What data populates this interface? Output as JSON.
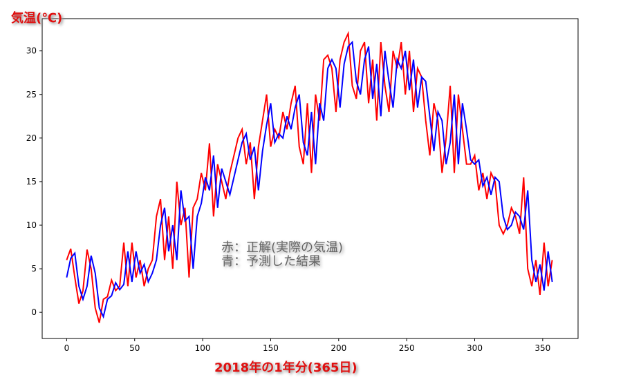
{
  "chart_data": {
    "type": "line",
    "title": "",
    "ylabel": "気温(℃)",
    "xlabel": "2018年の1年分(365日)",
    "xlim": [
      -18,
      376
    ],
    "ylim": [
      -3,
      33.7
    ],
    "xticks": [
      0,
      50,
      100,
      150,
      200,
      250,
      300,
      350
    ],
    "yticks": [
      0,
      5,
      10,
      15,
      20,
      25,
      30
    ],
    "grid": false,
    "annotation": [
      "赤：正解(実際の気温)",
      "青：予測した結果"
    ],
    "x_step": 3,
    "series": [
      {
        "color": "#ff0000",
        "values": [
          6,
          7.3,
          4,
          1,
          2.5,
          7.2,
          5,
          0.5,
          -1.2,
          1.5,
          1.8,
          3.7,
          2.5,
          3,
          8,
          3,
          8,
          4,
          6,
          3,
          5,
          6,
          11,
          13,
          6,
          11,
          5,
          15,
          10,
          12,
          4,
          12,
          13,
          16,
          14,
          19.4,
          11,
          17,
          15,
          13,
          16,
          18,
          20,
          21,
          17,
          19.5,
          13,
          19,
          22,
          25,
          19,
          21,
          20,
          23,
          21,
          24,
          26,
          19,
          17,
          24,
          16,
          25,
          22,
          29,
          29.5,
          28,
          23,
          29,
          31,
          32,
          26,
          24.5,
          30,
          31,
          24,
          29,
          22,
          31,
          26,
          23,
          30,
          28,
          31,
          25,
          30,
          23,
          28,
          27,
          22,
          18,
          24,
          22,
          16,
          20,
          26,
          16,
          25,
          21,
          17,
          17,
          18,
          14,
          16,
          13,
          16,
          15,
          10,
          9,
          10,
          12,
          11,
          9,
          15.5,
          5,
          3,
          6,
          2,
          8,
          3,
          6
        ]
      },
      {
        "color": "#0000ff",
        "values": [
          4,
          6.2,
          6.8,
          3,
          1.5,
          3,
          6.5,
          4.5,
          0.5,
          -0.5,
          1.5,
          1.9,
          3.4,
          2.6,
          3.2,
          7,
          3.5,
          7,
          4.5,
          5.5,
          3.5,
          4.5,
          6,
          10,
          12,
          7,
          10,
          6,
          14,
          10.5,
          11,
          5,
          11,
          12.5,
          15.5,
          14,
          18,
          12,
          16.5,
          15,
          13.5,
          15.5,
          17.5,
          19.5,
          20.5,
          17.5,
          19,
          14,
          18.5,
          21.5,
          24,
          19.5,
          20.5,
          20,
          22.5,
          21,
          23.5,
          25,
          19.5,
          18,
          23,
          17,
          24,
          22,
          28,
          29,
          28,
          23.5,
          28.5,
          30.5,
          31,
          26.5,
          25,
          29,
          30.5,
          24.5,
          28.5,
          22.5,
          30,
          26.5,
          23.5,
          29,
          28,
          30,
          25.5,
          29,
          23.5,
          27,
          26.5,
          22.5,
          18.5,
          23,
          22,
          17,
          19.5,
          25,
          17,
          24,
          21,
          17.5,
          17,
          17.5,
          14.5,
          15.5,
          13.5,
          15.5,
          15,
          11,
          9.5,
          10,
          11.5,
          11,
          9.5,
          14,
          6,
          3.5,
          5.5,
          2.5,
          7,
          3.5
        ]
      }
    ]
  }
}
